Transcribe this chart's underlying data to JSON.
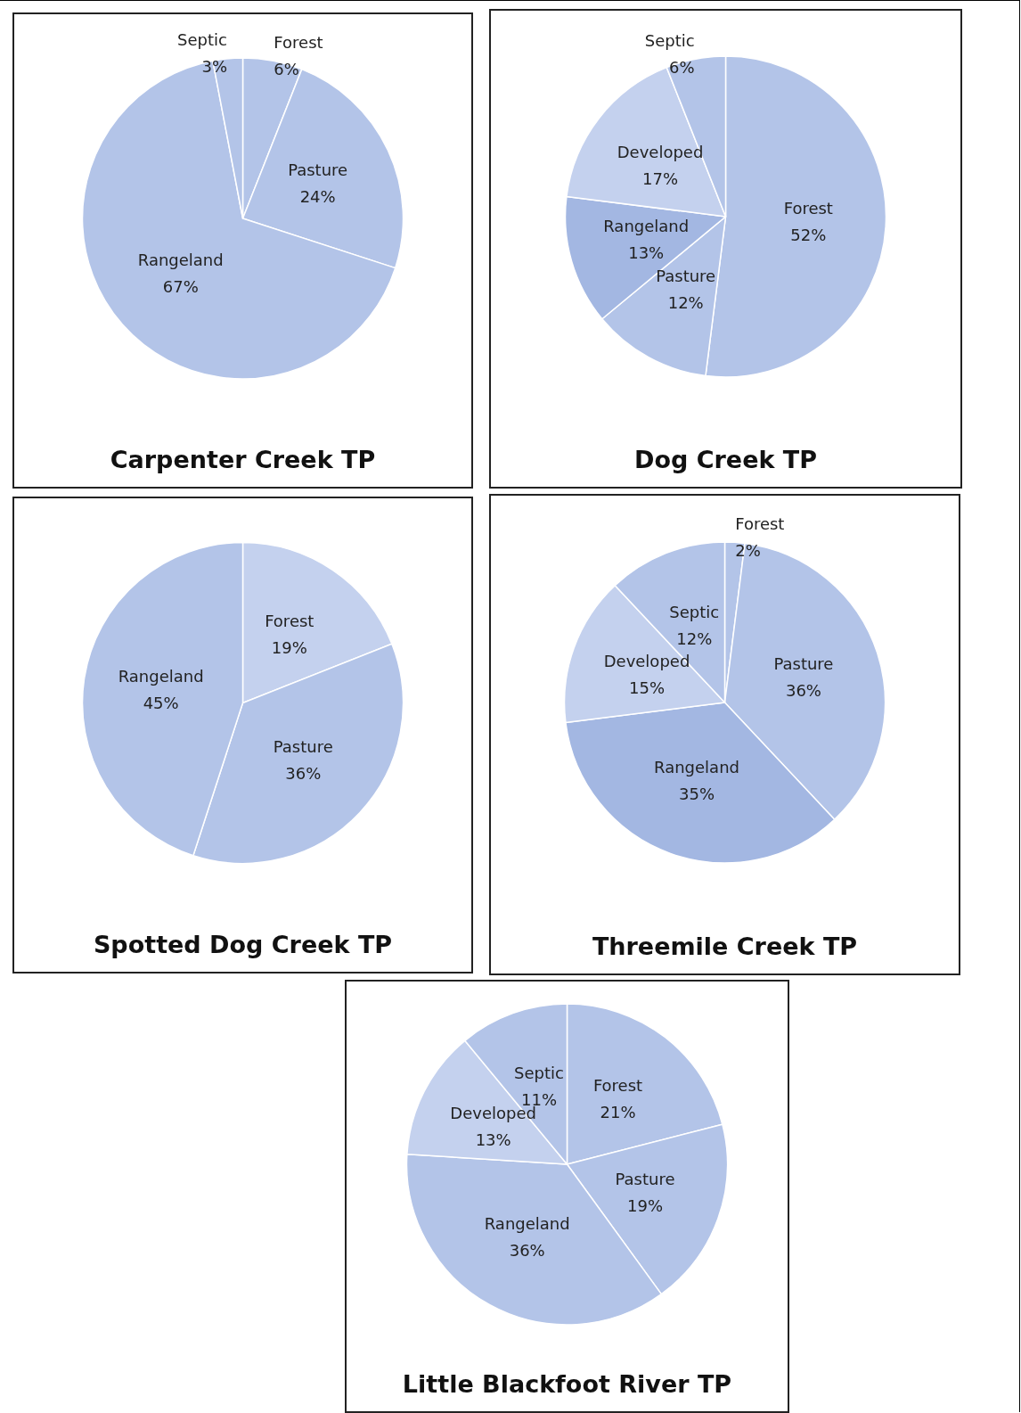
{
  "chart_data": [
    {
      "type": "pie",
      "title": "Carpenter Creek TP",
      "categories": [
        "Forest",
        "Pasture",
        "Rangeland",
        "Septic"
      ],
      "values": [
        6,
        24,
        67,
        3
      ],
      "value_labels": [
        "6%",
        "24%",
        "67%",
        "3%"
      ],
      "colors": [
        "#b3c4e8",
        "#b3c4e8",
        "#b3c4e8",
        "#b3c4e8"
      ],
      "legend": false
    },
    {
      "type": "pie",
      "title": "Dog Creek TP",
      "categories": [
        "Forest",
        "Pasture",
        "Rangeland",
        "Developed",
        "Septic"
      ],
      "values": [
        52,
        12,
        13,
        17,
        6
      ],
      "value_labels": [
        "52%",
        "12%",
        "13%",
        "17%",
        "6%"
      ],
      "colors": [
        "#b3c4e8",
        "#b3c4e8",
        "#a3b7e2",
        "#c4d1ee",
        "#b3c4e8"
      ],
      "legend": false
    },
    {
      "type": "pie",
      "title": "Spotted Dog Creek TP",
      "categories": [
        "Forest",
        "Pasture",
        "Rangeland"
      ],
      "values": [
        19,
        36,
        45
      ],
      "value_labels": [
        "19%",
        "36%",
        "45%"
      ],
      "colors": [
        "#c4d1ee",
        "#b3c4e8",
        "#b3c4e8"
      ],
      "legend": false
    },
    {
      "type": "pie",
      "title": "Threemile Creek TP",
      "categories": [
        "Forest",
        "Pasture",
        "Rangeland",
        "Developed",
        "Septic"
      ],
      "values": [
        2,
        36,
        35,
        15,
        12
      ],
      "value_labels": [
        "2%",
        "36%",
        "35%",
        "15%",
        "12%"
      ],
      "colors": [
        "#b3c4e8",
        "#b3c4e8",
        "#a3b7e2",
        "#c4d1ee",
        "#b3c4e8"
      ],
      "legend": false
    },
    {
      "type": "pie",
      "title": "Little Blackfoot River TP",
      "categories": [
        "Forest",
        "Pasture",
        "Rangeland",
        "Developed",
        "Septic"
      ],
      "values": [
        21,
        19,
        36,
        13,
        11
      ],
      "value_labels": [
        "21%",
        "19%",
        "36%",
        "13%",
        "11%"
      ],
      "colors": [
        "#b3c4e8",
        "#b3c4e8",
        "#b3c4e8",
        "#c4d1ee",
        "#b3c4e8"
      ],
      "legend": false
    }
  ]
}
